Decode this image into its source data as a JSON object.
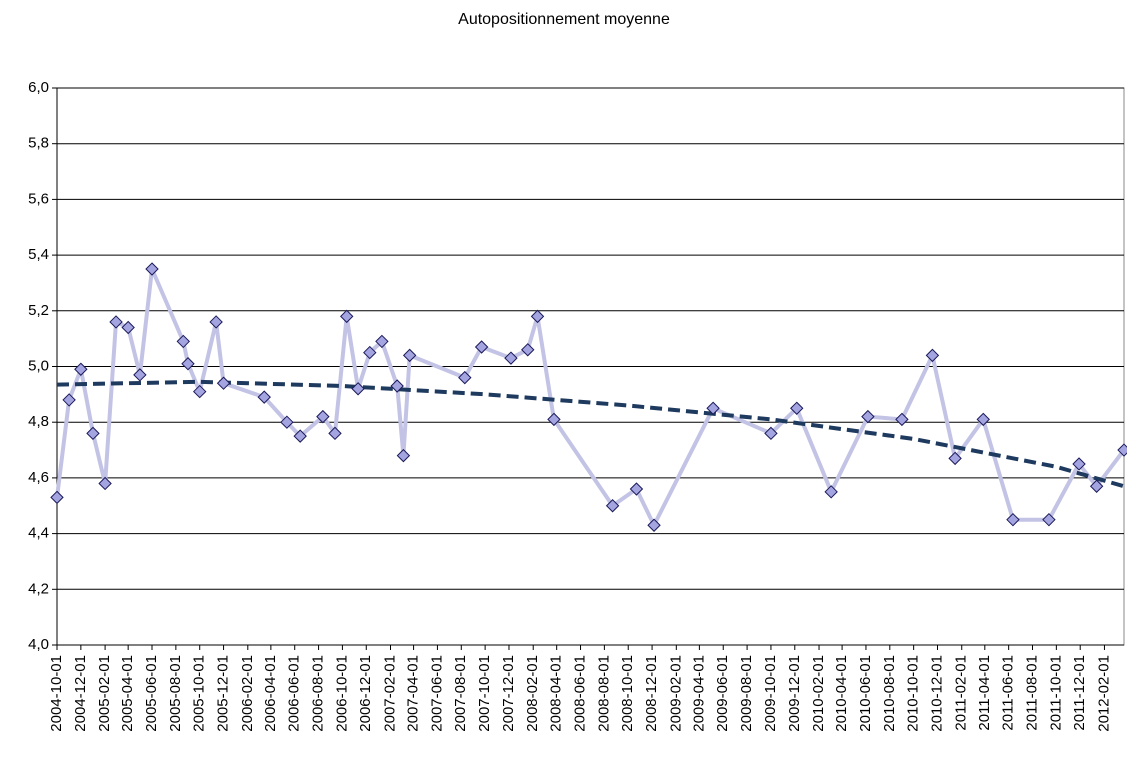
{
  "chart_data": {
    "type": "line",
    "title": "Autopositionnement moyenne",
    "x": [
      "2004-10-01",
      "2004-11-01",
      "2004-12-01",
      "2005-01-01",
      "2005-02-01",
      "2005-03-01",
      "2005-04-01",
      "2005-05-01",
      "2005-06-01",
      "2005-08-20",
      "2005-09-01",
      "2005-10-01",
      "2005-11-12",
      "2005-12-01",
      "2006-03-15",
      "2006-05-12",
      "2006-06-15",
      "2006-08-12",
      "2006-09-12",
      "2006-10-12",
      "2006-11-10",
      "2006-12-10",
      "2007-01-10",
      "2007-02-18",
      "2007-03-06",
      "2007-03-22",
      "2007-08-10",
      "2007-09-22",
      "2007-12-06",
      "2008-01-18",
      "2008-02-12",
      "2008-03-25",
      "2008-08-22",
      "2008-10-22",
      "2008-12-06",
      "2009-05-06",
      "2009-10-01",
      "2009-12-06",
      "2010-03-04",
      "2010-06-06",
      "2010-09-01",
      "2010-11-18",
      "2011-01-15",
      "2011-03-28",
      "2011-06-12",
      "2011-09-12",
      "2011-11-28",
      "2012-01-12",
      "2012-03-22"
    ],
    "series": [
      {
        "color": "#c3c3e6",
        "marker_color": "#a4a4e0",
        "values": [
          4.53,
          4.88,
          4.99,
          4.76,
          4.58,
          5.16,
          5.14,
          4.97,
          5.35,
          5.09,
          5.01,
          4.91,
          5.16,
          4.94,
          4.89,
          4.8,
          4.75,
          4.82,
          4.76,
          5.18,
          4.92,
          5.05,
          5.09,
          4.93,
          4.68,
          5.04,
          4.96,
          5.07,
          5.03,
          5.06,
          5.18,
          4.81,
          4.5,
          4.56,
          4.43,
          4.85,
          4.76,
          4.85,
          4.55,
          4.82,
          4.81,
          5.04,
          4.67,
          4.81,
          4.45,
          4.45,
          4.65,
          4.57,
          4.7
        ]
      }
    ],
    "trendline": {
      "color": "#1f3a5f",
      "x": [
        "2004-10-01",
        "2005-10-01",
        "2006-10-01",
        "2007-10-01",
        "2008-10-01",
        "2009-10-01",
        "2010-10-01",
        "2011-10-01",
        "2012-03-22"
      ],
      "values": [
        4.935,
        4.945,
        4.93,
        4.9,
        4.86,
        4.81,
        4.74,
        4.64,
        4.57
      ]
    },
    "xlim": [
      "2004-10-01",
      "2012-03-22"
    ],
    "xticks": [
      "2004-10-01",
      "2004-12-01",
      "2005-02-01",
      "2005-04-01",
      "2005-06-01",
      "2005-08-01",
      "2005-10-01",
      "2005-12-01",
      "2006-02-01",
      "2006-04-01",
      "2006-06-01",
      "2006-08-01",
      "2006-10-01",
      "2006-12-01",
      "2007-02-01",
      "2007-04-01",
      "2007-06-01",
      "2007-08-01",
      "2007-10-01",
      "2007-12-01",
      "2008-02-01",
      "2008-04-01",
      "2008-06-01",
      "2008-08-01",
      "2008-10-01",
      "2008-12-01",
      "2009-02-01",
      "2009-04-01",
      "2009-06-01",
      "2009-08-01",
      "2009-10-01",
      "2009-12-01",
      "2010-02-01",
      "2010-04-01",
      "2010-06-01",
      "2010-08-01",
      "2010-10-01",
      "2010-12-01",
      "2011-02-01",
      "2011-04-01",
      "2011-06-01",
      "2011-08-01",
      "2011-10-01",
      "2011-12-01",
      "2012-02-01"
    ],
    "ylim": [
      4.0,
      6.0
    ],
    "yticks": [
      {
        "value": 4.0,
        "label": "4,0"
      },
      {
        "value": 4.2,
        "label": "4,2"
      },
      {
        "value": 4.4,
        "label": "4,4"
      },
      {
        "value": 4.6,
        "label": "4,6"
      },
      {
        "value": 4.8,
        "label": "4,8"
      },
      {
        "value": 5.0,
        "label": "5,0"
      },
      {
        "value": 5.2,
        "label": "5,2"
      },
      {
        "value": 5.4,
        "label": "5,4"
      },
      {
        "value": 5.6,
        "label": "5,6"
      },
      {
        "value": 5.8,
        "label": "5,8"
      },
      {
        "value": 6.0,
        "label": "6,0"
      }
    ],
    "grid": true
  }
}
